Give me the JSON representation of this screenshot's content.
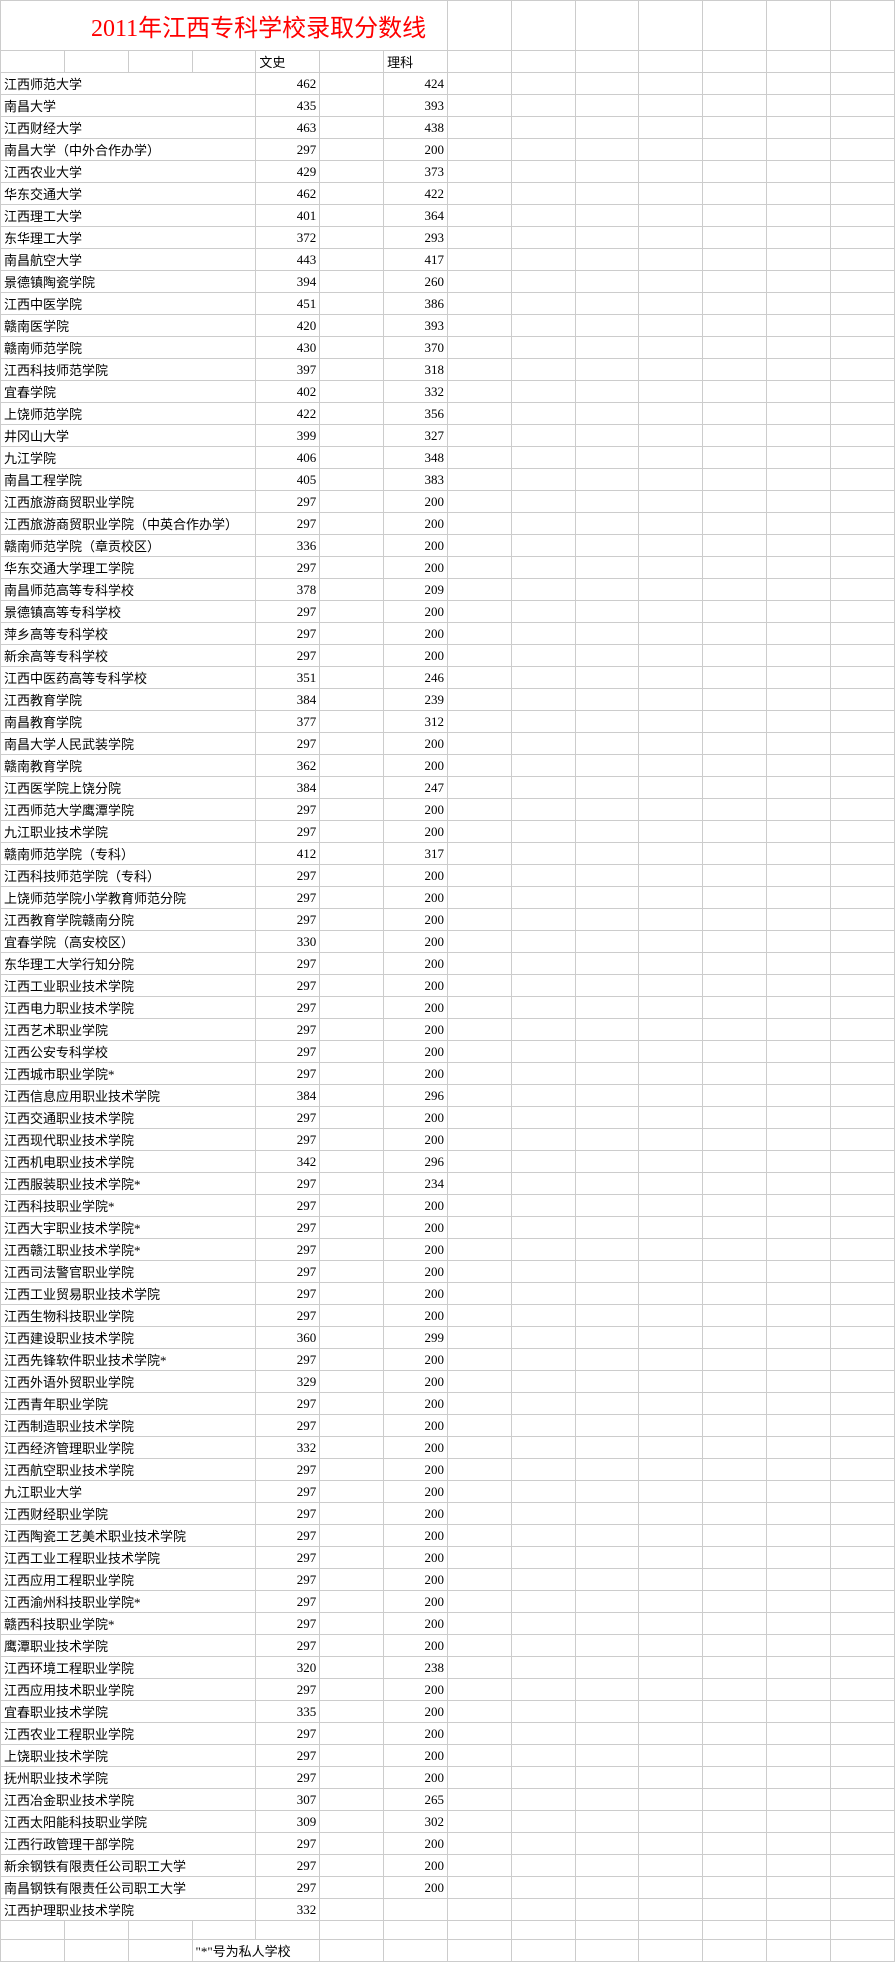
{
  "title": "2011年江西专科学校录取分数线",
  "headers": {
    "col_wenshi": "文史",
    "col_like": "理科"
  },
  "footnote": "\"*\"号为私人学校",
  "rows": [
    {
      "name": "江西师范大学",
      "ws": 462,
      "lk": 424
    },
    {
      "name": "南昌大学",
      "ws": 435,
      "lk": 393
    },
    {
      "name": "江西财经大学",
      "ws": 463,
      "lk": 438
    },
    {
      "name": "南昌大学（中外合作办学）",
      "ws": 297,
      "lk": 200
    },
    {
      "name": "江西农业大学",
      "ws": 429,
      "lk": 373
    },
    {
      "name": "华东交通大学",
      "ws": 462,
      "lk": 422
    },
    {
      "name": "江西理工大学",
      "ws": 401,
      "lk": 364
    },
    {
      "name": "东华理工大学",
      "ws": 372,
      "lk": 293
    },
    {
      "name": "南昌航空大学",
      "ws": 443,
      "lk": 417
    },
    {
      "name": "景德镇陶瓷学院",
      "ws": 394,
      "lk": 260
    },
    {
      "name": "江西中医学院",
      "ws": 451,
      "lk": 386
    },
    {
      "name": "赣南医学院",
      "ws": 420,
      "lk": 393
    },
    {
      "name": "赣南师范学院",
      "ws": 430,
      "lk": 370
    },
    {
      "name": "江西科技师范学院",
      "ws": 397,
      "lk": 318
    },
    {
      "name": "宜春学院",
      "ws": 402,
      "lk": 332
    },
    {
      "name": "上饶师范学院",
      "ws": 422,
      "lk": 356
    },
    {
      "name": "井冈山大学",
      "ws": 399,
      "lk": 327
    },
    {
      "name": "九江学院",
      "ws": 406,
      "lk": 348
    },
    {
      "name": "南昌工程学院",
      "ws": 405,
      "lk": 383
    },
    {
      "name": "江西旅游商贸职业学院",
      "ws": 297,
      "lk": 200
    },
    {
      "name": "江西旅游商贸职业学院（中英合作办学）",
      "ws": 297,
      "lk": 200
    },
    {
      "name": "赣南师范学院（章贡校区）",
      "ws": 336,
      "lk": 200
    },
    {
      "name": "华东交通大学理工学院",
      "ws": 297,
      "lk": 200
    },
    {
      "name": "南昌师范高等专科学校",
      "ws": 378,
      "lk": 209
    },
    {
      "name": "景德镇高等专科学校",
      "ws": 297,
      "lk": 200
    },
    {
      "name": "萍乡高等专科学校",
      "ws": 297,
      "lk": 200
    },
    {
      "name": "新余高等专科学校",
      "ws": 297,
      "lk": 200
    },
    {
      "name": "江西中医药高等专科学校",
      "ws": 351,
      "lk": 246
    },
    {
      "name": "江西教育学院",
      "ws": 384,
      "lk": 239
    },
    {
      "name": "南昌教育学院",
      "ws": 377,
      "lk": 312
    },
    {
      "name": "南昌大学人民武装学院",
      "ws": 297,
      "lk": 200
    },
    {
      "name": "赣南教育学院",
      "ws": 362,
      "lk": 200
    },
    {
      "name": "江西医学院上饶分院",
      "ws": 384,
      "lk": 247
    },
    {
      "name": "江西师范大学鹰潭学院",
      "ws": 297,
      "lk": 200
    },
    {
      "name": "九江职业技术学院",
      "ws": 297,
      "lk": 200
    },
    {
      "name": "赣南师范学院（专科）",
      "ws": 412,
      "lk": 317
    },
    {
      "name": "江西科技师范学院（专科）",
      "ws": 297,
      "lk": 200
    },
    {
      "name": "上饶师范学院小学教育师范分院",
      "ws": 297,
      "lk": 200
    },
    {
      "name": "江西教育学院赣南分院",
      "ws": 297,
      "lk": 200
    },
    {
      "name": "宜春学院（高安校区）",
      "ws": 330,
      "lk": 200
    },
    {
      "name": "东华理工大学行知分院",
      "ws": 297,
      "lk": 200
    },
    {
      "name": "江西工业职业技术学院",
      "ws": 297,
      "lk": 200
    },
    {
      "name": "江西电力职业技术学院",
      "ws": 297,
      "lk": 200
    },
    {
      "name": "江西艺术职业学院",
      "ws": 297,
      "lk": 200
    },
    {
      "name": "江西公安专科学校",
      "ws": 297,
      "lk": 200
    },
    {
      "name": "江西城市职业学院*",
      "ws": 297,
      "lk": 200
    },
    {
      "name": "江西信息应用职业技术学院",
      "ws": 384,
      "lk": 296
    },
    {
      "name": "江西交通职业技术学院",
      "ws": 297,
      "lk": 200
    },
    {
      "name": "江西现代职业技术学院",
      "ws": 297,
      "lk": 200
    },
    {
      "name": "江西机电职业技术学院",
      "ws": 342,
      "lk": 296
    },
    {
      "name": "江西服装职业技术学院*",
      "ws": 297,
      "lk": 234
    },
    {
      "name": "江西科技职业学院*",
      "ws": 297,
      "lk": 200
    },
    {
      "name": "江西大宇职业技术学院*",
      "ws": 297,
      "lk": 200
    },
    {
      "name": "江西赣江职业技术学院*",
      "ws": 297,
      "lk": 200
    },
    {
      "name": "江西司法警官职业学院",
      "ws": 297,
      "lk": 200
    },
    {
      "name": "江西工业贸易职业技术学院",
      "ws": 297,
      "lk": 200
    },
    {
      "name": "江西生物科技职业学院",
      "ws": 297,
      "lk": 200
    },
    {
      "name": "江西建设职业技术学院",
      "ws": 360,
      "lk": 299
    },
    {
      "name": "江西先锋软件职业技术学院*",
      "ws": 297,
      "lk": 200
    },
    {
      "name": "江西外语外贸职业学院",
      "ws": 329,
      "lk": 200
    },
    {
      "name": "江西青年职业学院",
      "ws": 297,
      "lk": 200
    },
    {
      "name": "江西制造职业技术学院",
      "ws": 297,
      "lk": 200
    },
    {
      "name": "江西经济管理职业学院",
      "ws": 332,
      "lk": 200
    },
    {
      "name": "江西航空职业技术学院",
      "ws": 297,
      "lk": 200
    },
    {
      "name": "九江职业大学",
      "ws": 297,
      "lk": 200
    },
    {
      "name": "江西财经职业学院",
      "ws": 297,
      "lk": 200
    },
    {
      "name": "江西陶瓷工艺美术职业技术学院",
      "ws": 297,
      "lk": 200
    },
    {
      "name": "江西工业工程职业技术学院",
      "ws": 297,
      "lk": 200
    },
    {
      "name": "江西应用工程职业学院",
      "ws": 297,
      "lk": 200
    },
    {
      "name": "江西渝州科技职业学院*",
      "ws": 297,
      "lk": 200
    },
    {
      "name": "赣西科技职业学院*",
      "ws": 297,
      "lk": 200
    },
    {
      "name": "鹰潭职业技术学院",
      "ws": 297,
      "lk": 200
    },
    {
      "name": "江西环境工程职业学院",
      "ws": 320,
      "lk": 238
    },
    {
      "name": "江西应用技术职业学院",
      "ws": 297,
      "lk": 200
    },
    {
      "name": "宜春职业技术学院",
      "ws": 335,
      "lk": 200
    },
    {
      "name": "江西农业工程职业学院",
      "ws": 297,
      "lk": 200
    },
    {
      "name": "上饶职业技术学院",
      "ws": 297,
      "lk": 200
    },
    {
      "name": "抚州职业技术学院",
      "ws": 297,
      "lk": 200
    },
    {
      "name": "江西冶金职业技术学院",
      "ws": 307,
      "lk": 265
    },
    {
      "name": "江西太阳能科技职业学院",
      "ws": 309,
      "lk": 302
    },
    {
      "name": "江西行政管理干部学院",
      "ws": 297,
      "lk": 200
    },
    {
      "name": "新余钢铁有限责任公司职工大学",
      "ws": 297,
      "lk": 200
    },
    {
      "name": "南昌钢铁有限责任公司职工大学",
      "ws": 297,
      "lk": 200
    },
    {
      "name": "江西护理职业技术学院",
      "ws": 332,
      "lk": null
    }
  ],
  "styles": {
    "title_color": "#ff0000",
    "title_fontsize": 24,
    "border_color": "#cccccc",
    "text_color": "#000000",
    "background": "#ffffff",
    "cell_fontsize": 13
  }
}
